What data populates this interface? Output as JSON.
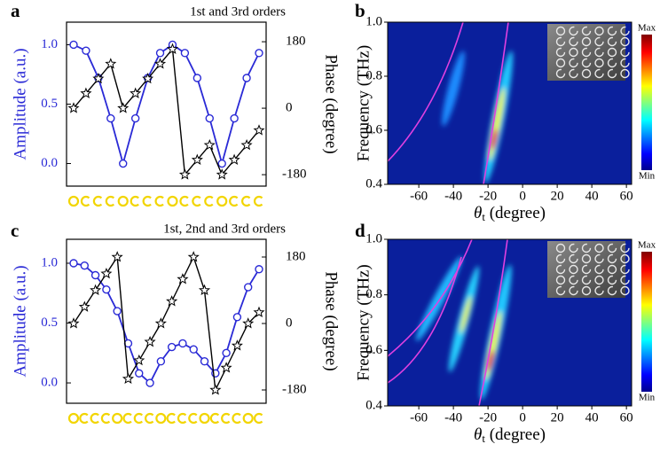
{
  "chart_data": [
    {
      "type": "line",
      "label": "a",
      "title": "1st and 3rd orders",
      "ylabel": "Amplitude (a.u.)",
      "y2label": "Phase (degree)",
      "categories": [
        null,
        null,
        null,
        null,
        null,
        null,
        null,
        null,
        null,
        null,
        null,
        null,
        null,
        null,
        null,
        null
      ],
      "ylim": [
        -0.19,
        1.19
      ],
      "yticks": [
        {
          "value": 0,
          "label": "0.0"
        },
        0.5,
        {
          "value": 1,
          "label": "1.0"
        }
      ],
      "y2lim": [
        -211,
        233
      ],
      "y2ticks": [
        -180,
        0,
        180
      ],
      "series": [
        {
          "color": "#2a2ad6",
          "marker": "circle",
          "values": [
            1.0,
            0.95,
            0.72,
            0.38,
            0.0,
            0.38,
            0.72,
            0.93,
            1.0,
            0.93,
            0.72,
            0.38,
            0.0,
            0.38,
            0.72,
            0.93
          ]
        },
        {
          "color": "#000000",
          "marker": "star",
          "axis": "y2",
          "values": [
            0,
            40,
            80,
            120,
            0,
            40,
            80,
            120,
            160,
            -180,
            -140,
            -100,
            -180,
            -140,
            -100,
            -60
          ]
        }
      ],
      "icon_color": "#f2d500"
    },
    {
      "type": "heatmap",
      "label": "b",
      "ylabel": "Frequency (THz)",
      "xlabel_symbol": "θ",
      "xlabel_subscript": "t",
      "xlabel_unit": " (degree)",
      "xlim": [
        -78,
        63
      ],
      "xticks": [
        -60,
        -40,
        -20,
        0,
        20,
        40,
        60
      ],
      "ylim": [
        0.4,
        1.0
      ],
      "yticks": [
        0.4,
        0.6,
        0.8,
        {
          "value": 1.0,
          "label": "1.0"
        }
      ],
      "colorbar": {
        "max_label": "Max",
        "min_label": "Min"
      }
    },
    {
      "type": "line",
      "label": "c",
      "title": "1st, 2nd and 3rd orders",
      "ylabel": "Amplitude (a.u.)",
      "y2label": "Phase (degree)",
      "categories": [
        null,
        null,
        null,
        null,
        null,
        null,
        null,
        null,
        null,
        null,
        null,
        null,
        null,
        null,
        null,
        null,
        null,
        null
      ],
      "ylim": [
        -0.17,
        1.2
      ],
      "yticks": [
        {
          "value": 0,
          "label": "0.0"
        },
        0.5,
        {
          "value": 1,
          "label": "1.0"
        }
      ],
      "y2lim": [
        -216,
        228
      ],
      "y2ticks": [
        -180,
        0,
        180
      ],
      "series": [
        {
          "color": "#2a2ad6",
          "marker": "circle",
          "values": [
            1.0,
            0.98,
            0.9,
            0.78,
            0.6,
            0.33,
            0.08,
            0.0,
            0.18,
            0.3,
            0.33,
            0.28,
            0.18,
            0.08,
            0.25,
            0.55,
            0.8,
            0.95
          ]
        },
        {
          "color": "#000000",
          "marker": "star",
          "axis": "y2",
          "values": [
            0,
            45,
            90,
            135,
            180,
            -150,
            -100,
            -50,
            0,
            60,
            120,
            180,
            90,
            -180,
            -120,
            -60,
            0,
            30
          ]
        }
      ],
      "icon_color": "#f2d500"
    },
    {
      "type": "heatmap",
      "label": "d",
      "ylabel": "Frequency (THz)",
      "xlabel_symbol": "θ",
      "xlabel_subscript": "t",
      "xlabel_unit": " (degree)",
      "xlim": [
        -78,
        63
      ],
      "xticks": [
        -60,
        -40,
        -20,
        0,
        20,
        40,
        60
      ],
      "ylim": [
        0.4,
        1.0
      ],
      "yticks": [
        0.4,
        0.6,
        0.8,
        {
          "value": 1.0,
          "label": "1.0"
        }
      ],
      "colorbar": {
        "max_label": "Max",
        "min_label": "Min"
      }
    }
  ]
}
